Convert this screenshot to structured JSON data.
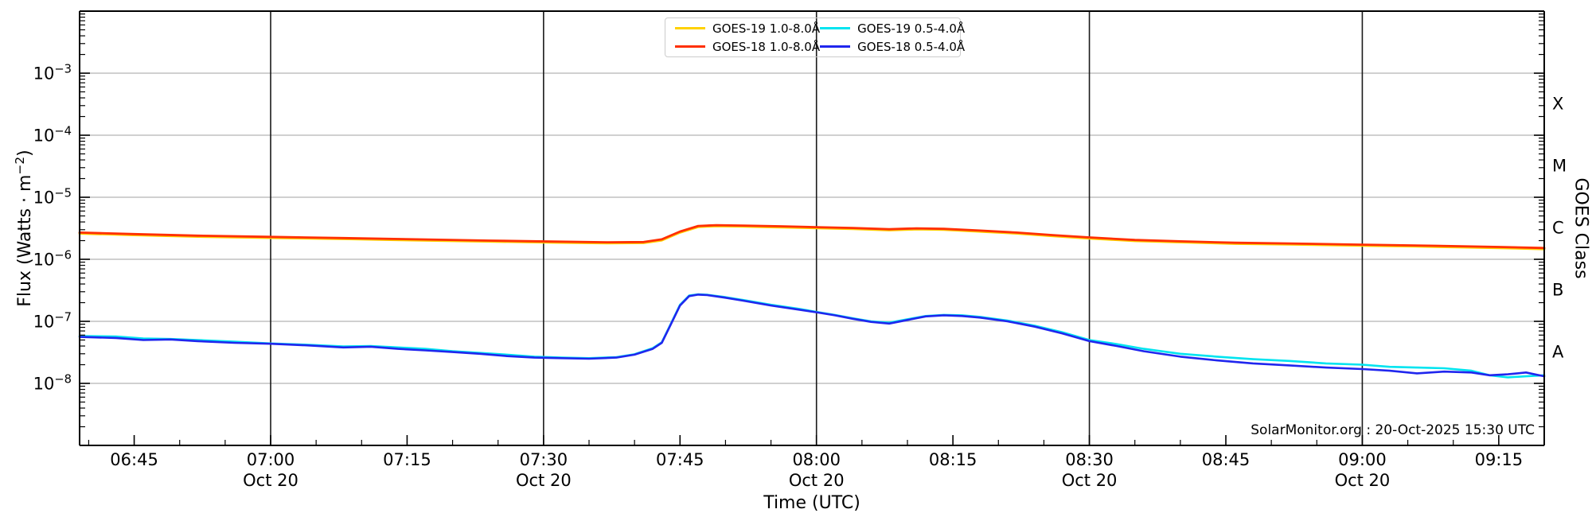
{
  "figure": {
    "xlabel": "Time (UTC)",
    "ylabel_prefix": "Flux (Watts · m",
    "ylabel_sup": "−2",
    "ylabel_suffix": ")",
    "right_axis_label": "GOES Class",
    "source_note": "SolarMonitor.org : 20-Oct-2025 15:30 UTC",
    "colors": {
      "h_gridline": "#b4b4b4",
      "v_gridline": "#1a1a1a",
      "spine": "#000000"
    }
  },
  "chart_data": {
    "type": "line",
    "title": "",
    "xlabel": "Time (UTC)",
    "ylabel": "Flux (Watts · m^-2)",
    "right_ylabel": "GOES Class",
    "y_scale": "log",
    "ylim": [
      1e-09,
      0.01
    ],
    "y_tick_exponents": [
      -3,
      -4,
      -5,
      -6,
      -7,
      -8
    ],
    "x_range_utc": [
      "06:39",
      "09:20"
    ],
    "x_date_label": "Oct 20",
    "x_major_ticks": [
      "06:45",
      "07:00",
      "07:15",
      "07:30",
      "07:45",
      "08:00",
      "08:15",
      "08:30",
      "08:45",
      "09:00",
      "09:15"
    ],
    "x_gridline_ticks": [
      "07:00",
      "07:30",
      "08:00",
      "08:30",
      "09:00"
    ],
    "x_minor_tick_minutes": 5,
    "grid": {
      "horizontal": "gray at each labeled decade",
      "vertical": "black at 30-minute marks"
    },
    "legend_position": "top-center, two columns, transparent background",
    "goes_classes": [
      {
        "label": "X",
        "flux_midpoint": 0.0003162
      },
      {
        "label": "M",
        "flux_midpoint": 3.162e-05
      },
      {
        "label": "C",
        "flux_midpoint": 3.162e-06
      },
      {
        "label": "B",
        "flux_midpoint": 3.162e-07
      },
      {
        "label": "A",
        "flux_midpoint": 3.162e-08
      }
    ],
    "series": [
      {
        "name": "GOES-19 1.0-8.0Å",
        "color": "#ffd100",
        "points": [
          [
            "06:39",
            2.6e-06
          ],
          [
            "06:45",
            2.45e-06
          ],
          [
            "06:52",
            2.31e-06
          ],
          [
            "07:00",
            2.21e-06
          ],
          [
            "07:08",
            2.12e-06
          ],
          [
            "07:16",
            2.02e-06
          ],
          [
            "07:24",
            1.93e-06
          ],
          [
            "07:31",
            1.86e-06
          ],
          [
            "07:37",
            1.81e-06
          ],
          [
            "07:41",
            1.83e-06
          ],
          [
            "07:43",
            2.02e-06
          ],
          [
            "07:45",
            2.7e-06
          ],
          [
            "07:47",
            3.32e-06
          ],
          [
            "07:49",
            3.42e-06
          ],
          [
            "07:52",
            3.37e-06
          ],
          [
            "07:56",
            3.27e-06
          ],
          [
            "08:00",
            3.18e-06
          ],
          [
            "08:04",
            3.08e-06
          ],
          [
            "08:08",
            2.94e-06
          ],
          [
            "08:11",
            3.03e-06
          ],
          [
            "08:14",
            2.99e-06
          ],
          [
            "08:18",
            2.79e-06
          ],
          [
            "08:22",
            2.6e-06
          ],
          [
            "08:26",
            2.36e-06
          ],
          [
            "08:30",
            2.17e-06
          ],
          [
            "08:35",
            1.97e-06
          ],
          [
            "08:40",
            1.88e-06
          ],
          [
            "08:46",
            1.78e-06
          ],
          [
            "08:52",
            1.73e-06
          ],
          [
            "09:00",
            1.66e-06
          ],
          [
            "09:08",
            1.59e-06
          ],
          [
            "09:15",
            1.52e-06
          ],
          [
            "09:20",
            1.46e-06
          ]
        ]
      },
      {
        "name": "GOES-18 1.0-8.0Å",
        "color": "#ff2f00",
        "points": [
          [
            "06:39",
            2.7e-06
          ],
          [
            "06:45",
            2.55e-06
          ],
          [
            "06:52",
            2.4e-06
          ],
          [
            "07:00",
            2.3e-06
          ],
          [
            "07:08",
            2.2e-06
          ],
          [
            "07:16",
            2.1e-06
          ],
          [
            "07:24",
            2e-06
          ],
          [
            "07:31",
            1.93e-06
          ],
          [
            "07:37",
            1.88e-06
          ],
          [
            "07:41",
            1.9e-06
          ],
          [
            "07:43",
            2.1e-06
          ],
          [
            "07:45",
            2.8e-06
          ],
          [
            "07:47",
            3.45e-06
          ],
          [
            "07:49",
            3.55e-06
          ],
          [
            "07:52",
            3.5e-06
          ],
          [
            "07:56",
            3.4e-06
          ],
          [
            "08:00",
            3.3e-06
          ],
          [
            "08:04",
            3.2e-06
          ],
          [
            "08:08",
            3.05e-06
          ],
          [
            "08:11",
            3.15e-06
          ],
          [
            "08:14",
            3.1e-06
          ],
          [
            "08:18",
            2.9e-06
          ],
          [
            "08:22",
            2.7e-06
          ],
          [
            "08:26",
            2.45e-06
          ],
          [
            "08:30",
            2.25e-06
          ],
          [
            "08:35",
            2.05e-06
          ],
          [
            "08:40",
            1.95e-06
          ],
          [
            "08:46",
            1.85e-06
          ],
          [
            "08:52",
            1.8e-06
          ],
          [
            "09:00",
            1.72e-06
          ],
          [
            "09:08",
            1.65e-06
          ],
          [
            "09:15",
            1.58e-06
          ],
          [
            "09:20",
            1.52e-06
          ]
        ]
      },
      {
        "name": "GOES-19 0.5-4.0Å",
        "color": "#00e4f0",
        "points": [
          [
            "06:39",
            5.8e-08
          ],
          [
            "06:43",
            5.7e-08
          ],
          [
            "06:46",
            5.3e-08
          ],
          [
            "06:49",
            5.2e-08
          ],
          [
            "06:52",
            5e-08
          ],
          [
            "06:56",
            4.7e-08
          ],
          [
            "07:00",
            4.4e-08
          ],
          [
            "07:04",
            4.2e-08
          ],
          [
            "07:08",
            3.95e-08
          ],
          [
            "07:11",
            4e-08
          ],
          [
            "07:14",
            3.8e-08
          ],
          [
            "07:17",
            3.6e-08
          ],
          [
            "07:20",
            3.3e-08
          ],
          [
            "07:23",
            3.1e-08
          ],
          [
            "07:26",
            2.9e-08
          ],
          [
            "07:29",
            2.7e-08
          ],
          [
            "07:32",
            2.6e-08
          ],
          [
            "07:35",
            2.55e-08
          ],
          [
            "07:38",
            2.65e-08
          ],
          [
            "07:40",
            2.95e-08
          ],
          [
            "07:42",
            3.7e-08
          ],
          [
            "07:43",
            4.6e-08
          ],
          [
            "07:44",
            9.2e-08
          ],
          [
            "07:45",
            1.85e-07
          ],
          [
            "07:46",
            2.6e-07
          ],
          [
            "07:47",
            2.72e-07
          ],
          [
            "07:48",
            2.68e-07
          ],
          [
            "07:50",
            2.45e-07
          ],
          [
            "07:52",
            2.2e-07
          ],
          [
            "07:55",
            1.85e-07
          ],
          [
            "07:58",
            1.6e-07
          ],
          [
            "08:00",
            1.42e-07
          ],
          [
            "08:02",
            1.27e-07
          ],
          [
            "08:04",
            1.12e-07
          ],
          [
            "08:06",
            1e-07
          ],
          [
            "08:08",
            9.5e-08
          ],
          [
            "08:10",
            1.08e-07
          ],
          [
            "08:12",
            1.22e-07
          ],
          [
            "08:14",
            1.27e-07
          ],
          [
            "08:16",
            1.25e-07
          ],
          [
            "08:18",
            1.18e-07
          ],
          [
            "08:21",
            1.03e-07
          ],
          [
            "08:24",
            8.5e-08
          ],
          [
            "08:27",
            6.7e-08
          ],
          [
            "08:30",
            5e-08
          ],
          [
            "08:33",
            4.3e-08
          ],
          [
            "08:36",
            3.6e-08
          ],
          [
            "08:40",
            3e-08
          ],
          [
            "08:44",
            2.7e-08
          ],
          [
            "08:48",
            2.45e-08
          ],
          [
            "08:52",
            2.3e-08
          ],
          [
            "08:56",
            2.1e-08
          ],
          [
            "09:00",
            2e-08
          ],
          [
            "09:03",
            1.85e-08
          ],
          [
            "09:06",
            1.8e-08
          ],
          [
            "09:09",
            1.75e-08
          ],
          [
            "09:12",
            1.6e-08
          ],
          [
            "09:14",
            1.35e-08
          ],
          [
            "09:16",
            1.25e-08
          ],
          [
            "09:18",
            1.3e-08
          ],
          [
            "09:20",
            1.35e-08
          ]
        ]
      },
      {
        "name": "GOES-18 0.5-4.0Å",
        "color": "#2026ee",
        "points": [
          [
            "06:39",
            5.6e-08
          ],
          [
            "06:43",
            5.4e-08
          ],
          [
            "06:46",
            5e-08
          ],
          [
            "06:49",
            5.1e-08
          ],
          [
            "06:52",
            4.8e-08
          ],
          [
            "06:56",
            4.5e-08
          ],
          [
            "07:00",
            4.35e-08
          ],
          [
            "07:04",
            4.1e-08
          ],
          [
            "07:08",
            3.8e-08
          ],
          [
            "07:11",
            3.9e-08
          ],
          [
            "07:14",
            3.6e-08
          ],
          [
            "07:17",
            3.4e-08
          ],
          [
            "07:20",
            3.2e-08
          ],
          [
            "07:23",
            3e-08
          ],
          [
            "07:26",
            2.75e-08
          ],
          [
            "07:29",
            2.6e-08
          ],
          [
            "07:32",
            2.55e-08
          ],
          [
            "07:35",
            2.5e-08
          ],
          [
            "07:38",
            2.6e-08
          ],
          [
            "07:40",
            2.9e-08
          ],
          [
            "07:42",
            3.6e-08
          ],
          [
            "07:43",
            4.5e-08
          ],
          [
            "07:44",
            9e-08
          ],
          [
            "07:45",
            1.8e-07
          ],
          [
            "07:46",
            2.55e-07
          ],
          [
            "07:47",
            2.7e-07
          ],
          [
            "07:48",
            2.65e-07
          ],
          [
            "07:50",
            2.4e-07
          ],
          [
            "07:52",
            2.15e-07
          ],
          [
            "07:55",
            1.8e-07
          ],
          [
            "07:58",
            1.55e-07
          ],
          [
            "08:00",
            1.4e-07
          ],
          [
            "08:02",
            1.25e-07
          ],
          [
            "08:04",
            1.1e-07
          ],
          [
            "08:06",
            9.8e-08
          ],
          [
            "08:08",
            9.2e-08
          ],
          [
            "08:10",
            1.05e-07
          ],
          [
            "08:12",
            1.2e-07
          ],
          [
            "08:14",
            1.25e-07
          ],
          [
            "08:16",
            1.22e-07
          ],
          [
            "08:18",
            1.15e-07
          ],
          [
            "08:21",
            1e-07
          ],
          [
            "08:24",
            8.2e-08
          ],
          [
            "08:27",
            6.4e-08
          ],
          [
            "08:30",
            4.8e-08
          ],
          [
            "08:33",
            4e-08
          ],
          [
            "08:36",
            3.3e-08
          ],
          [
            "08:40",
            2.7e-08
          ],
          [
            "08:44",
            2.35e-08
          ],
          [
            "08:48",
            2.1e-08
          ],
          [
            "08:52",
            1.95e-08
          ],
          [
            "08:56",
            1.8e-08
          ],
          [
            "09:00",
            1.7e-08
          ],
          [
            "09:03",
            1.6e-08
          ],
          [
            "09:06",
            1.45e-08
          ],
          [
            "09:09",
            1.55e-08
          ],
          [
            "09:12",
            1.5e-08
          ],
          [
            "09:14",
            1.35e-08
          ],
          [
            "09:16",
            1.4e-08
          ],
          [
            "09:18",
            1.5e-08
          ],
          [
            "09:20",
            1.3e-08
          ]
        ]
      }
    ]
  }
}
